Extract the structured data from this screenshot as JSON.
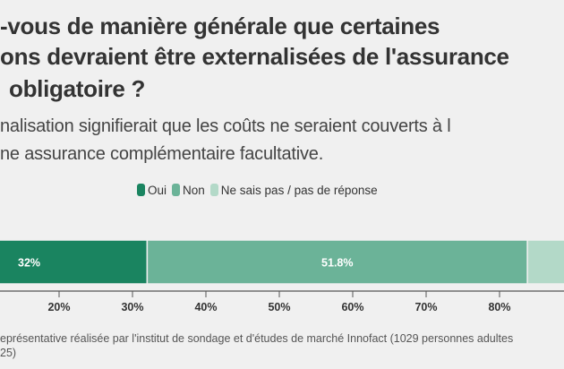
{
  "title_lines": [
    "-vous de manière générale que certaines",
    "ons devraient être externalisées de l'assurance",
    "obligatoire ?"
  ],
  "subtitle_lines": [
    "nalisation signifierait que les coûts ne seraient couverts à l",
    "ne assurance complémentaire facultative."
  ],
  "footer_lines": [
    "eprésentative réalisée par l'institut de sondage et d'études de marché Innofact (1029 personnes adultes",
    "25)"
  ],
  "chart_data": {
    "type": "bar",
    "stacked": true,
    "orientation": "horizontal",
    "series": [
      {
        "name": "Oui",
        "value": 32,
        "label": "32%",
        "color": "#1a8460"
      },
      {
        "name": "Non",
        "value": 51.8,
        "label": "51.8%",
        "color": "#6bb398"
      },
      {
        "name": "Ne sais pas / pas de réponse",
        "value": 16.2,
        "label": "",
        "color": "#b3d9c8"
      }
    ],
    "xticks": [
      {
        "value": 20,
        "label": "20%"
      },
      {
        "value": 30,
        "label": "30%"
      },
      {
        "value": 40,
        "label": "40%"
      },
      {
        "value": 50,
        "label": "50%"
      },
      {
        "value": 60,
        "label": "60%"
      },
      {
        "value": 70,
        "label": "70%"
      },
      {
        "value": 80,
        "label": "80%"
      }
    ],
    "xlim": [
      0,
      100
    ],
    "legend_position": "top-center"
  }
}
